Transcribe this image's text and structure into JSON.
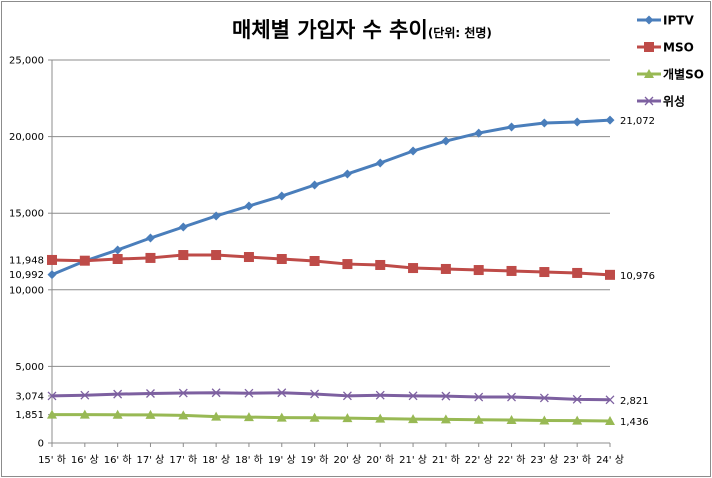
{
  "chart_data": {
    "type": "line",
    "title": "매체별 가입자 수 추이",
    "subtitle": "(단위: 천명)",
    "xlabel": "",
    "ylabel": "",
    "ylim": [
      0,
      25000
    ],
    "y_ticks": [
      0,
      1851,
      3074,
      5000,
      10000,
      10992,
      11948,
      15000,
      20000,
      25000
    ],
    "y_tick_labels": [
      "0",
      "1,851",
      "3,074",
      "5,000",
      "10,000",
      "10,992",
      "11,948",
      "15,000",
      "20,000",
      "25,000"
    ],
    "gridlines": [
      5000,
      10000,
      15000,
      20000,
      25000
    ],
    "grid": true,
    "legend_position": "top-right",
    "categories": [
      "15' 하",
      "16' 상",
      "16' 하",
      "17' 상",
      "17' 하",
      "18' 상",
      "18' 하",
      "19' 상",
      "19' 하",
      "20' 상",
      "20' 하",
      "21' 상",
      "21' 하",
      "22' 상",
      "22' 하",
      "23' 상",
      "23' 하",
      "24' 상"
    ],
    "series": [
      {
        "name": "IPTV",
        "color": "#4a7ebb",
        "marker": "diamond",
        "end_label": "21,072",
        "values": [
          10992,
          11880,
          12600,
          13380,
          14100,
          14820,
          15470,
          16120,
          16840,
          17560,
          18280,
          19060,
          19710,
          20230,
          20630,
          20890,
          20950,
          21072
        ]
      },
      {
        "name": "MSO",
        "color": "#be4b48",
        "marker": "square",
        "end_label": "10,976",
        "values": [
          11948,
          11900,
          12010,
          12080,
          12270,
          12270,
          12140,
          12010,
          11880,
          11680,
          11620,
          11420,
          11360,
          11290,
          11230,
          11160,
          11100,
          10976
        ]
      },
      {
        "name": "개별SO",
        "color": "#98b954",
        "marker": "triangle",
        "end_label": "1,436",
        "values": [
          1851,
          1850,
          1840,
          1835,
          1800,
          1720,
          1690,
          1660,
          1650,
          1620,
          1590,
          1560,
          1540,
          1520,
          1500,
          1470,
          1460,
          1436
        ]
      },
      {
        "name": "위성",
        "color": "#7d60a0",
        "marker": "x",
        "end_label": "2,821",
        "values": [
          3074,
          3120,
          3190,
          3230,
          3260,
          3280,
          3250,
          3280,
          3200,
          3080,
          3120,
          3080,
          3060,
          3000,
          3000,
          2940,
          2850,
          2821
        ]
      }
    ]
  }
}
